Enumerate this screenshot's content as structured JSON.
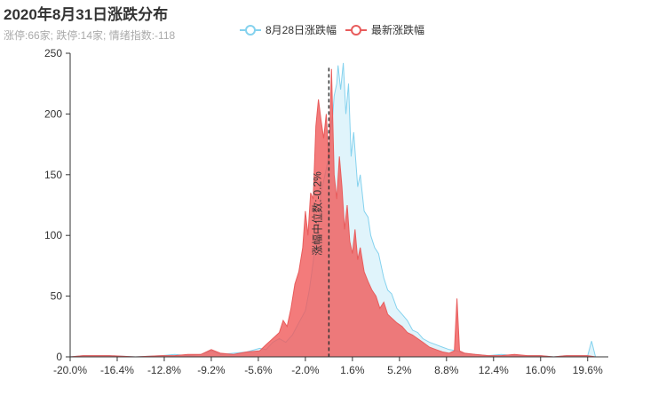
{
  "chart_data": {
    "type": "area",
    "title": "2020年8月31日涨跌分布",
    "subtitle": "涨停:66家; 跌停:14家; 情绪指数:-118",
    "x_tick_labels": [
      "-20.0%",
      "-16.4%",
      "-12.8%",
      "-9.2%",
      "-5.6%",
      "-2.0%",
      "1.6%",
      "5.2%",
      "8.8%",
      "12.4%",
      "16.0%",
      "19.6%"
    ],
    "x_tick_values": [
      -20.0,
      -16.4,
      -12.8,
      -9.2,
      -5.6,
      -2.0,
      1.6,
      5.2,
      8.8,
      12.4,
      16.0,
      19.6
    ],
    "xlim": [
      -20.0,
      20.5
    ],
    "ylim": [
      0,
      250
    ],
    "y_ticks": [
      0,
      50,
      100,
      150,
      200,
      250
    ],
    "median": {
      "value": -0.2,
      "label": "涨幅中位数:-0.2%"
    },
    "series": [
      {
        "name": "8月28日涨跌幅",
        "color": "#85d2ee",
        "fill": "rgba(133,210,238,0.25)",
        "points": [
          [
            -20.0,
            0
          ],
          [
            -19.0,
            1
          ],
          [
            -17.0,
            1
          ],
          [
            -15.0,
            0
          ],
          [
            -13.0,
            1
          ],
          [
            -12.0,
            2
          ],
          [
            -11.0,
            1
          ],
          [
            -10.0,
            2
          ],
          [
            -9.2,
            5
          ],
          [
            -8.5,
            2
          ],
          [
            -7.5,
            3
          ],
          [
            -6.5,
            4
          ],
          [
            -5.5,
            7
          ],
          [
            -5.0,
            6
          ],
          [
            -4.5,
            12
          ],
          [
            -4.0,
            15
          ],
          [
            -3.5,
            12
          ],
          [
            -3.0,
            18
          ],
          [
            -2.5,
            28
          ],
          [
            -2.0,
            38
          ],
          [
            -1.7,
            55
          ],
          [
            -1.5,
            70
          ],
          [
            -1.2,
            95
          ],
          [
            -1.0,
            110
          ],
          [
            -0.8,
            135
          ],
          [
            -0.5,
            150
          ],
          [
            -0.3,
            160
          ],
          [
            -0.1,
            185
          ],
          [
            0.1,
            200
          ],
          [
            0.2,
            215
          ],
          [
            0.4,
            225
          ],
          [
            0.5,
            240
          ],
          [
            0.7,
            220
          ],
          [
            0.9,
            242
          ],
          [
            1.1,
            200
          ],
          [
            1.3,
            225
          ],
          [
            1.5,
            165
          ],
          [
            1.7,
            185
          ],
          [
            2.0,
            140
          ],
          [
            2.2,
            150
          ],
          [
            2.5,
            120
          ],
          [
            2.8,
            115
          ],
          [
            3.0,
            100
          ],
          [
            3.3,
            90
          ],
          [
            3.6,
            85
          ],
          [
            4.0,
            65
          ],
          [
            4.3,
            55
          ],
          [
            4.6,
            52
          ],
          [
            5.0,
            40
          ],
          [
            5.4,
            35
          ],
          [
            5.8,
            30
          ],
          [
            6.2,
            22
          ],
          [
            6.6,
            20
          ],
          [
            7.0,
            15
          ],
          [
            7.5,
            12
          ],
          [
            8.0,
            10
          ],
          [
            8.5,
            8
          ],
          [
            9.0,
            6
          ],
          [
            9.6,
            5
          ],
          [
            10.0,
            3
          ],
          [
            11.0,
            2
          ],
          [
            12.0,
            1
          ],
          [
            13.0,
            2
          ],
          [
            14.0,
            1
          ],
          [
            15.0,
            1
          ],
          [
            16.0,
            1
          ],
          [
            17.0,
            0
          ],
          [
            18.0,
            1
          ],
          [
            19.0,
            1
          ],
          [
            19.6,
            1
          ],
          [
            19.9,
            13
          ],
          [
            20.2,
            0
          ]
        ]
      },
      {
        "name": "最新涨跌幅",
        "color": "#e85c5c",
        "fill": "rgba(240,90,90,0.8)",
        "points": [
          [
            -20.0,
            0
          ],
          [
            -19.0,
            1
          ],
          [
            -17.0,
            1
          ],
          [
            -15.0,
            0
          ],
          [
            -13.0,
            1
          ],
          [
            -12.0,
            1
          ],
          [
            -11.0,
            2
          ],
          [
            -10.0,
            2
          ],
          [
            -9.2,
            6
          ],
          [
            -8.5,
            3
          ],
          [
            -7.5,
            2
          ],
          [
            -6.5,
            4
          ],
          [
            -5.5,
            5
          ],
          [
            -5.0,
            10
          ],
          [
            -4.5,
            15
          ],
          [
            -4.0,
            20
          ],
          [
            -3.7,
            30
          ],
          [
            -3.4,
            25
          ],
          [
            -3.1,
            40
          ],
          [
            -2.8,
            60
          ],
          [
            -2.5,
            70
          ],
          [
            -2.2,
            90
          ],
          [
            -2.0,
            120
          ],
          [
            -1.8,
            100
          ],
          [
            -1.6,
            135
          ],
          [
            -1.4,
            130
          ],
          [
            -1.2,
            190
          ],
          [
            -1.0,
            212
          ],
          [
            -0.8,
            195
          ],
          [
            -0.6,
            180
          ],
          [
            -0.4,
            200
          ],
          [
            -0.2,
            160
          ],
          [
            0.0,
            237
          ],
          [
            0.2,
            150
          ],
          [
            0.4,
            130
          ],
          [
            0.6,
            165
          ],
          [
            0.8,
            140
          ],
          [
            1.0,
            105
          ],
          [
            1.2,
            125
          ],
          [
            1.4,
            95
          ],
          [
            1.6,
            85
          ],
          [
            1.8,
            105
          ],
          [
            2.0,
            80
          ],
          [
            2.2,
            90
          ],
          [
            2.5,
            70
          ],
          [
            2.8,
            62
          ],
          [
            3.1,
            55
          ],
          [
            3.4,
            50
          ],
          [
            3.7,
            40
          ],
          [
            4.0,
            45
          ],
          [
            4.3,
            35
          ],
          [
            4.6,
            32
          ],
          [
            5.0,
            28
          ],
          [
            5.4,
            25
          ],
          [
            5.8,
            20
          ],
          [
            6.2,
            18
          ],
          [
            6.6,
            15
          ],
          [
            7.0,
            12
          ],
          [
            7.5,
            8
          ],
          [
            8.0,
            6
          ],
          [
            8.5,
            4
          ],
          [
            9.0,
            3
          ],
          [
            9.4,
            5
          ],
          [
            9.6,
            48
          ],
          [
            9.8,
            5
          ],
          [
            10.2,
            3
          ],
          [
            11.0,
            2
          ],
          [
            12.0,
            1
          ],
          [
            13.0,
            1
          ],
          [
            14.0,
            2
          ],
          [
            15.0,
            1
          ],
          [
            16.0,
            1
          ],
          [
            17.0,
            0
          ],
          [
            18.0,
            1
          ],
          [
            19.0,
            1
          ],
          [
            19.6,
            1
          ],
          [
            20.2,
            0
          ]
        ]
      }
    ]
  }
}
